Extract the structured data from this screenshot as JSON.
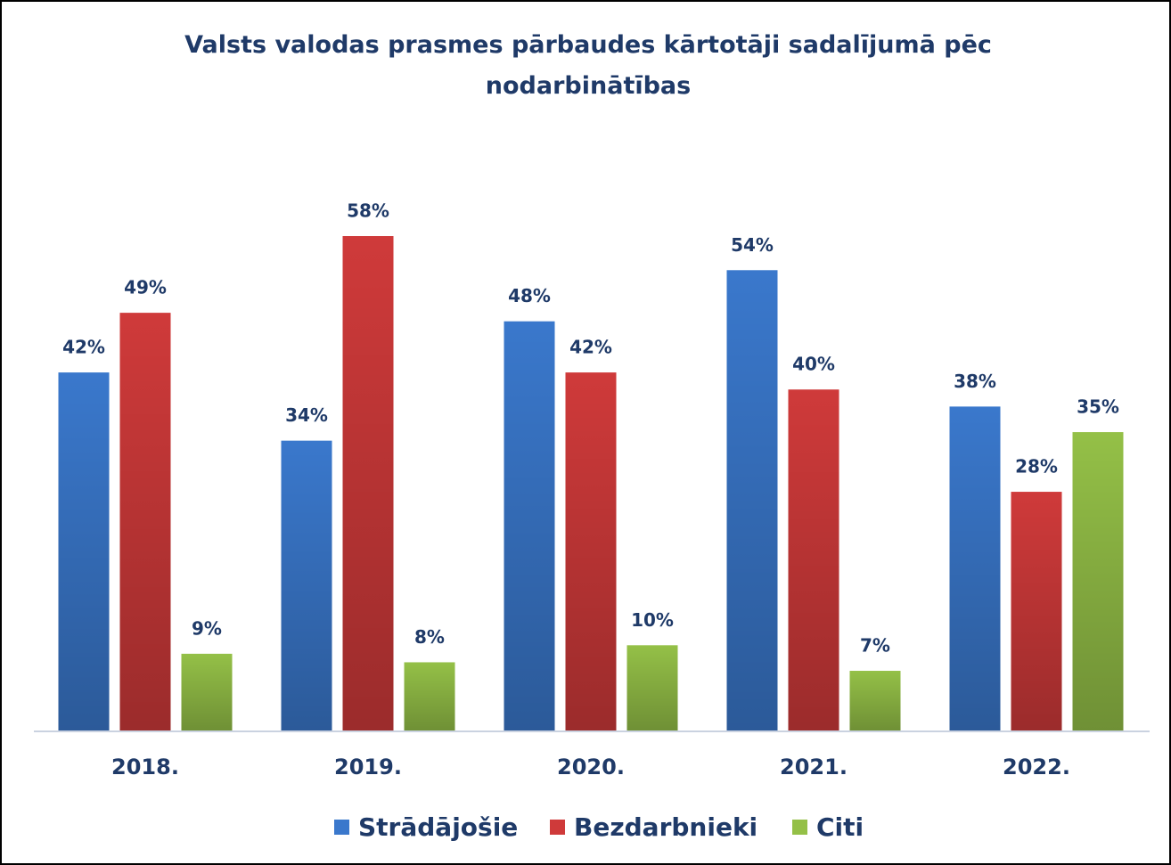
{
  "chart_data": {
    "type": "bar",
    "title": "Valsts valodas prasmes pārbaudes kārtotāji sadalījumā pēc nodarbinātības",
    "categories": [
      "2018.",
      "2019.",
      "2020.",
      "2021.",
      "2022."
    ],
    "series": [
      {
        "name": "Strādājošie",
        "color": "#3a78cc",
        "values": [
          42,
          34,
          48,
          54,
          38
        ],
        "value_labels": [
          "42%",
          "34%",
          "48%",
          "54%",
          "38%"
        ]
      },
      {
        "name": "Bezdarbnieki",
        "color": "#cf3a3a",
        "values": [
          49,
          58,
          42,
          40,
          28
        ],
        "value_labels": [
          "49%",
          "58%",
          "42%",
          "40%",
          "28%"
        ]
      },
      {
        "name": "Citi",
        "color": "#94c047",
        "values": [
          9,
          8,
          10,
          7,
          35
        ],
        "value_labels": [
          "9%",
          "8%",
          "10%",
          "7%",
          "35%"
        ]
      }
    ]
  }
}
